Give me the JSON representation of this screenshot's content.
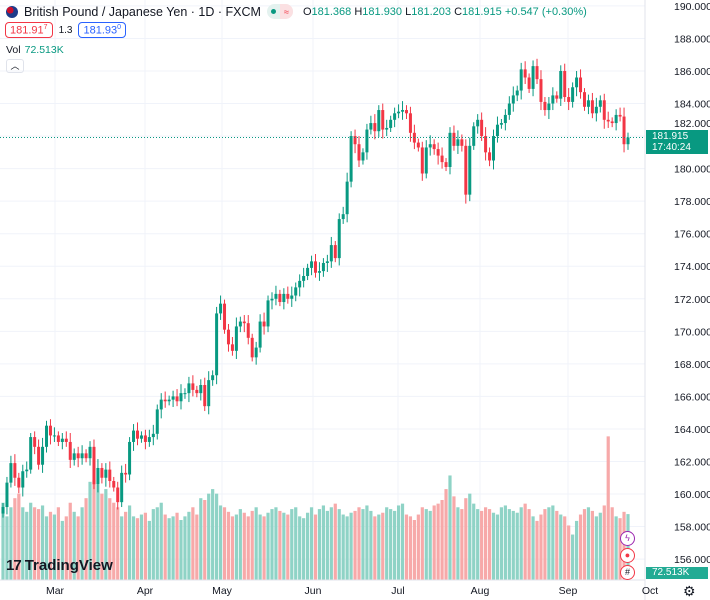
{
  "header": {
    "symbol": "British Pound / Japanese Yen · 1D · FXCM",
    "open_label": "O",
    "open": "181.368",
    "high_label": "H",
    "high": "181.930",
    "low_label": "L",
    "low": "181.203",
    "close_label": "C",
    "close": "181.915",
    "change": "+0.547 (+0.30%)",
    "pill_icon": "approx-icon"
  },
  "quote": {
    "bid_main": "181.91",
    "bid_sup": "7",
    "spread": "1.3",
    "ask_main": "181.93",
    "ask_sup": "0"
  },
  "volume": {
    "label": "Vol",
    "value": "72.513K"
  },
  "collapse_icon": "chevron-up-icon",
  "last_price": {
    "price": "181.915",
    "countdown": "17:40:24",
    "value": 181.915
  },
  "logo": "TradingView",
  "colors": {
    "up": "#089981",
    "down": "#f23645",
    "vol_up": "#8fd3c6",
    "vol_down": "#f7a9a9"
  },
  "chart_data": {
    "type": "candlestick",
    "title": "British Pound / Japanese Yen · 1D · FXCM",
    "y_ticks": [
      "156.000",
      "158.000",
      "160.000",
      "162.000",
      "164.000",
      "166.000",
      "168.000",
      "170.000",
      "172.000",
      "174.000",
      "176.000",
      "178.000",
      "180.000",
      "182.000",
      "184.000",
      "186.000",
      "188.000",
      "190.000"
    ],
    "x_ticks": [
      "Mar",
      "Apr",
      "May",
      "Jun",
      "Jul",
      "Aug",
      "Sep",
      "Oct"
    ],
    "ylim": [
      155.4,
      190.4
    ],
    "first_open": 158.8,
    "close": [
      159.2,
      160.7,
      161.9,
      161.0,
      160.4,
      161.4,
      161.5,
      163.5,
      162.9,
      161.8,
      162.9,
      164.2,
      163.6,
      163.6,
      163.2,
      163.4,
      163.2,
      162.1,
      162.5,
      162.2,
      162.5,
      162.2,
      162.9,
      160.6,
      161.6,
      161.0,
      161.5,
      160.8,
      160.4,
      159.5,
      161.3,
      161.2,
      163.2,
      163.9,
      163.4,
      163.6,
      163.2,
      163.5,
      163.7,
      165.2,
      165.8,
      165.7,
      165.8,
      166.0,
      165.7,
      166.2,
      166.2,
      166.8,
      166.4,
      166.2,
      166.7,
      165.4,
      167.0,
      167.3,
      171.1,
      171.7,
      170.1,
      169.2,
      168.8,
      170.3,
      170.6,
      170.5,
      169.6,
      168.4,
      169.0,
      170.6,
      170.3,
      171.9,
      172.0,
      172.3,
      171.8,
      172.3,
      172.0,
      172.2,
      172.7,
      173.1,
      173.4,
      173.9,
      174.3,
      173.6,
      173.7,
      174.2,
      174.3,
      175.3,
      174.5,
      176.9,
      177.2,
      179.2,
      182.0,
      181.5,
      180.5,
      181.0,
      182.4,
      182.8,
      182.3,
      183.6,
      182.4,
      182.5,
      183.0,
      183.4,
      183.5,
      183.6,
      183.4,
      182.2,
      181.6,
      181.3,
      179.7,
      181.3,
      181.5,
      181.2,
      180.8,
      180.4,
      180.1,
      182.2,
      181.4,
      181.8,
      181.4,
      178.4,
      181.4,
      182.6,
      183.0,
      182.0,
      181.0,
      180.5,
      182.0,
      182.7,
      182.8,
      183.3,
      184.0,
      184.5,
      184.8,
      186.1,
      185.6,
      184.9,
      186.3,
      185.5,
      184.1,
      183.6,
      184.0,
      184.5,
      184.3,
      186.0,
      184.4,
      184.1,
      185.0,
      185.6,
      184.7,
      183.8,
      184.2,
      183.4,
      183.8,
      184.2,
      183.0,
      182.9,
      182.8,
      183.3,
      183.2,
      181.5,
      181.915
    ],
    "volume_k": [
      85,
      70,
      80,
      90,
      95,
      80,
      75,
      85,
      80,
      78,
      82,
      70,
      75,
      72,
      80,
      65,
      70,
      85,
      75,
      70,
      80,
      90,
      108,
      110,
      105,
      95,
      100,
      90,
      85,
      80,
      70,
      75,
      82,
      70,
      68,
      72,
      74,
      65,
      78,
      80,
      85,
      72,
      68,
      70,
      74,
      66,
      70,
      75,
      80,
      72,
      90,
      88,
      95,
      100,
      95,
      82,
      80,
      75,
      70,
      72,
      78,
      74,
      70,
      76,
      80,
      72,
      70,
      74,
      78,
      80,
      76,
      74,
      72,
      78,
      80,
      70,
      68,
      74,
      80,
      72,
      78,
      82,
      76,
      80,
      84,
      78,
      72,
      70,
      74,
      76,
      80,
      78,
      82,
      76,
      70,
      72,
      74,
      80,
      78,
      76,
      82,
      84,
      72,
      70,
      66,
      72,
      80,
      78,
      76,
      82,
      84,
      88,
      100,
      115,
      92,
      80,
      78,
      90,
      95,
      84,
      78,
      76,
      80,
      78,
      74,
      72,
      80,
      82,
      78,
      76,
      74,
      80,
      84,
      78,
      70,
      65,
      72,
      78,
      80,
      82,
      76,
      72,
      70,
      60,
      50,
      65,
      72,
      78,
      80,
      76,
      70,
      74,
      82,
      158,
      80,
      70,
      68,
      75,
      72.5
    ]
  }
}
